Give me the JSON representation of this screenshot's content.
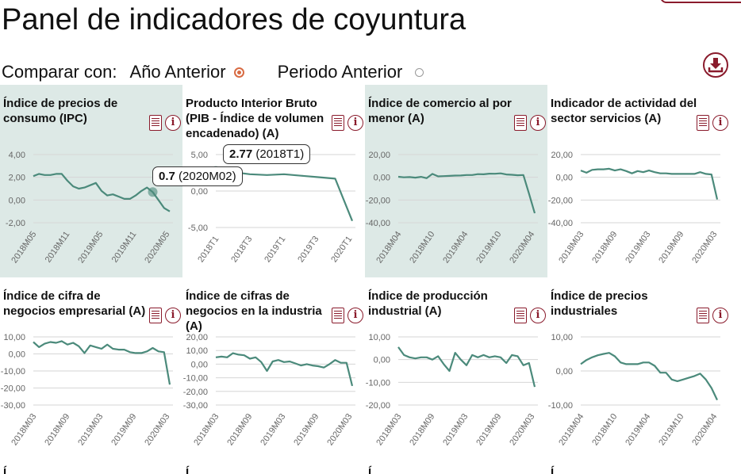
{
  "page": {
    "title": "Panel de indicadores de coyuntura"
  },
  "compare": {
    "label": "Comparar con:",
    "options": [
      {
        "label": "Año Anterior",
        "selected": true
      },
      {
        "label": "Periodo Anterior",
        "selected": false
      }
    ]
  },
  "icons": {
    "download": "download-icon",
    "methodology": "document-icon",
    "info": "info-icon",
    "info_glyph": "i"
  },
  "colors": {
    "line": "#4b8a7b",
    "highlight_bg": "#dde9e6",
    "accent": "#8a1b2c",
    "radio_selected": "#d86b43"
  },
  "tooltips": [
    {
      "value": "0.7",
      "period": "(2020M02)"
    },
    {
      "value": "2.77",
      "period": "(2018T1)"
    }
  ],
  "panels": [
    {
      "title": "Índice de precios de consumo (IPC)",
      "highlighted": true,
      "chart_data": {
        "type": "line",
        "x": [
          "2018M05",
          "2018M06",
          "2018M07",
          "2018M08",
          "2018M09",
          "2018M10",
          "2018M11",
          "2018M12",
          "2019M01",
          "2019M02",
          "2019M03",
          "2019M04",
          "2019M05",
          "2019M06",
          "2019M07",
          "2019M08",
          "2019M09",
          "2019M10",
          "2019M11",
          "2019M12",
          "2020M01",
          "2020M02",
          "2020M03",
          "2020M04",
          "2020M05"
        ],
        "y": [
          2.1,
          2.3,
          2.2,
          2.2,
          2.3,
          2.3,
          1.7,
          1.2,
          1.0,
          1.1,
          1.3,
          1.5,
          0.8,
          0.4,
          0.5,
          0.3,
          0.1,
          0.1,
          0.4,
          0.8,
          1.1,
          0.7,
          0.0,
          -0.7,
          -1.0
        ],
        "y_ticks": [
          "4,00",
          "2,00",
          "0,00",
          "-2,00"
        ],
        "x_ticks": [
          "2018M05",
          "2018M11",
          "2019M05",
          "2019M11",
          "2020M05"
        ],
        "ylim": [
          -2,
          4
        ],
        "highlight_point": "2020M02"
      }
    },
    {
      "title": "Producto Interior Bruto (PIB - Índice de volumen encadenado) (A)",
      "highlighted": false,
      "chart_data": {
        "type": "line",
        "x": [
          "2018T1",
          "2018T2",
          "2018T3",
          "2018T4",
          "2019T1",
          "2019T2",
          "2019T3",
          "2019T4",
          "2020T1"
        ],
        "y": [
          2.77,
          2.6,
          2.3,
          2.2,
          2.3,
          2.1,
          1.9,
          1.7,
          -4.1
        ],
        "y_ticks": [
          "5,00",
          "0,00",
          "-5,00"
        ],
        "x_ticks": [
          "2018T1",
          "2018T3",
          "2019T1",
          "2019T3",
          "2020T1"
        ],
        "ylim": [
          -5,
          5
        ],
        "highlight_point": "2018T1"
      }
    },
    {
      "title": "Índice de comercio al por menor (A)",
      "highlighted": true,
      "chart_data": {
        "type": "line",
        "x": [
          "2018M04",
          "2018M05",
          "2018M06",
          "2018M07",
          "2018M08",
          "2018M09",
          "2018M10",
          "2018M11",
          "2018M12",
          "2019M01",
          "2019M02",
          "2019M03",
          "2019M04",
          "2019M05",
          "2019M06",
          "2019M07",
          "2019M08",
          "2019M09",
          "2019M10",
          "2019M11",
          "2019M12",
          "2020M01",
          "2020M02",
          "2020M03",
          "2020M04"
        ],
        "y": [
          0.5,
          0.0,
          0.2,
          -0.3,
          0.4,
          -0.8,
          3.0,
          0.8,
          1.0,
          1.2,
          1.5,
          1.6,
          2.0,
          2.0,
          2.8,
          2.6,
          3.2,
          3.1,
          3.5,
          2.5,
          2.2,
          1.8,
          2.0,
          -14.4,
          -31.6
        ],
        "y_ticks": [
          "20,00",
          "0,00",
          "-20,00",
          "-40,00"
        ],
        "x_ticks": [
          "2018M04",
          "2018M10",
          "2019M04",
          "2019M10",
          "2020M04"
        ],
        "ylim": [
          -40,
          20
        ]
      }
    },
    {
      "title": "Indicador de actividad del sector servicios (A)",
      "highlighted": false,
      "chart_data": {
        "type": "line",
        "x": [
          "2018M03",
          "2018M04",
          "2018M05",
          "2018M06",
          "2018M07",
          "2018M08",
          "2018M09",
          "2018M10",
          "2018M11",
          "2018M12",
          "2019M01",
          "2019M02",
          "2019M03",
          "2019M04",
          "2019M05",
          "2019M06",
          "2019M07",
          "2019M08",
          "2019M09",
          "2019M10",
          "2019M11",
          "2019M12",
          "2020M01",
          "2020M02",
          "2020M03"
        ],
        "y": [
          6.0,
          4.0,
          6.5,
          7.0,
          7.0,
          7.5,
          6.0,
          7.0,
          5.5,
          3.5,
          5.5,
          4.5,
          6.0,
          4.5,
          3.5,
          3.5,
          3.0,
          3.0,
          3.0,
          3.0,
          3.0,
          4.5,
          3.0,
          2.5,
          -19.5
        ],
        "y_ticks": [
          "20,00",
          "0,00",
          "-20,00",
          "-40,00"
        ],
        "x_ticks": [
          "2018M03",
          "2018M09",
          "2019M03",
          "2019M09",
          "2020M03"
        ],
        "ylim": [
          -40,
          20
        ]
      }
    },
    {
      "title": "Índice de cifra de negocios empresarial (A)",
      "highlighted": false,
      "chart_data": {
        "type": "line",
        "x": [
          "2018M03",
          "2018M04",
          "2018M05",
          "2018M06",
          "2018M07",
          "2018M08",
          "2018M09",
          "2018M10",
          "2018M11",
          "2018M12",
          "2019M01",
          "2019M02",
          "2019M03",
          "2019M04",
          "2019M05",
          "2019M06",
          "2019M07",
          "2019M08",
          "2019M09",
          "2019M10",
          "2019M11",
          "2019M12",
          "2020M01",
          "2020M02",
          "2020M03"
        ],
        "y": [
          7.0,
          4.0,
          6.0,
          7.0,
          6.5,
          7.5,
          5.5,
          6.5,
          4.5,
          0.5,
          5.0,
          4.0,
          3.0,
          5.5,
          3.0,
          2.5,
          2.5,
          1.0,
          0.5,
          0.5,
          1.5,
          3.5,
          1.5,
          1.0,
          -18.0
        ],
        "y_ticks": [
          "10,00",
          "0,00",
          "-10,00",
          "-20,00",
          "-30,00"
        ],
        "x_ticks": [
          "2018M03",
          "2018M09",
          "2019M03",
          "2019M09",
          "2020M03"
        ],
        "ylim": [
          -30,
          10
        ]
      }
    },
    {
      "title": "Índice de cifras de negocios en la industria (A)",
      "highlighted": false,
      "chart_data": {
        "type": "line",
        "x": [
          "2018M03",
          "2018M04",
          "2018M05",
          "2018M06",
          "2018M07",
          "2018M08",
          "2018M09",
          "2018M10",
          "2018M11",
          "2018M12",
          "2019M01",
          "2019M02",
          "2019M03",
          "2019M04",
          "2019M05",
          "2019M06",
          "2019M07",
          "2019M08",
          "2019M09",
          "2019M10",
          "2019M11",
          "2019M12",
          "2020M01",
          "2020M02",
          "2020M03"
        ],
        "y": [
          5.0,
          5.5,
          5.0,
          8.0,
          7.0,
          6.5,
          4.0,
          5.0,
          1.5,
          -5.0,
          2.0,
          3.0,
          1.5,
          2.0,
          0.5,
          -1.0,
          0.0,
          -1.0,
          -1.5,
          -2.5,
          0.0,
          3.0,
          1.0,
          1.0,
          -16.0
        ],
        "y_ticks": [
          "20,00",
          "10,00",
          "0,00",
          "-10,00",
          "-20,00",
          "-30,00"
        ],
        "x_ticks": [
          "2018M03",
          "2018M09",
          "2019M03",
          "2019M09",
          "2020M03"
        ],
        "ylim": [
          -30,
          20
        ]
      }
    },
    {
      "title": "Índice de producción industrial (A)",
      "highlighted": false,
      "chart_data": {
        "type": "line",
        "x": [
          "2018M03",
          "2018M04",
          "2018M05",
          "2018M06",
          "2018M07",
          "2018M08",
          "2018M09",
          "2018M10",
          "2018M11",
          "2018M12",
          "2019M01",
          "2019M02",
          "2019M03",
          "2019M04",
          "2019M05",
          "2019M06",
          "2019M07",
          "2019M08",
          "2019M09",
          "2019M10",
          "2019M11",
          "2019M12",
          "2020M01",
          "2020M02",
          "2020M03"
        ],
        "y": [
          5.5,
          2.0,
          1.0,
          0.5,
          1.0,
          1.0,
          0.0,
          1.5,
          -2.0,
          -5.0,
          3.0,
          0.0,
          -2.5,
          2.0,
          1.0,
          2.0,
          1.0,
          1.5,
          1.0,
          -1.5,
          2.0,
          1.5,
          -2.5,
          -1.5,
          -12.0
        ],
        "y_ticks": [
          "10,00",
          "0,00",
          "-10,00",
          "-20,00"
        ],
        "x_ticks": [
          "2018M03",
          "2018M09",
          "2019M03",
          "2019M09",
          "2020M03"
        ],
        "ylim": [
          -20,
          10
        ]
      }
    },
    {
      "title": "Índice de precios industriales",
      "highlighted": false,
      "chart_data": {
        "type": "line",
        "x": [
          "2018M04",
          "2018M05",
          "2018M06",
          "2018M07",
          "2018M08",
          "2018M09",
          "2018M10",
          "2018M11",
          "2018M12",
          "2019M01",
          "2019M02",
          "2019M03",
          "2019M04",
          "2019M05",
          "2019M06",
          "2019M07",
          "2019M08",
          "2019M09",
          "2019M10",
          "2019M11",
          "2019M12",
          "2020M01",
          "2020M02",
          "2020M03",
          "2020M04"
        ],
        "y": [
          2.0,
          3.2,
          4.0,
          4.6,
          5.0,
          5.3,
          4.3,
          2.5,
          2.0,
          2.0,
          2.0,
          2.5,
          2.5,
          1.5,
          -0.5,
          -0.5,
          -2.5,
          -3.0,
          -2.5,
          -2.0,
          -1.5,
          -0.8,
          -2.5,
          -5.0,
          -8.5
        ],
        "y_ticks": [
          "10,00",
          "0,00",
          "-10,00"
        ],
        "x_ticks": [
          "2018M04",
          "2018M10",
          "2019M04",
          "2019M10",
          "2020M04"
        ],
        "ylim": [
          -10,
          10
        ]
      }
    }
  ],
  "next_row_stubs": [
    "Í",
    "Í",
    "Í",
    "Í"
  ]
}
